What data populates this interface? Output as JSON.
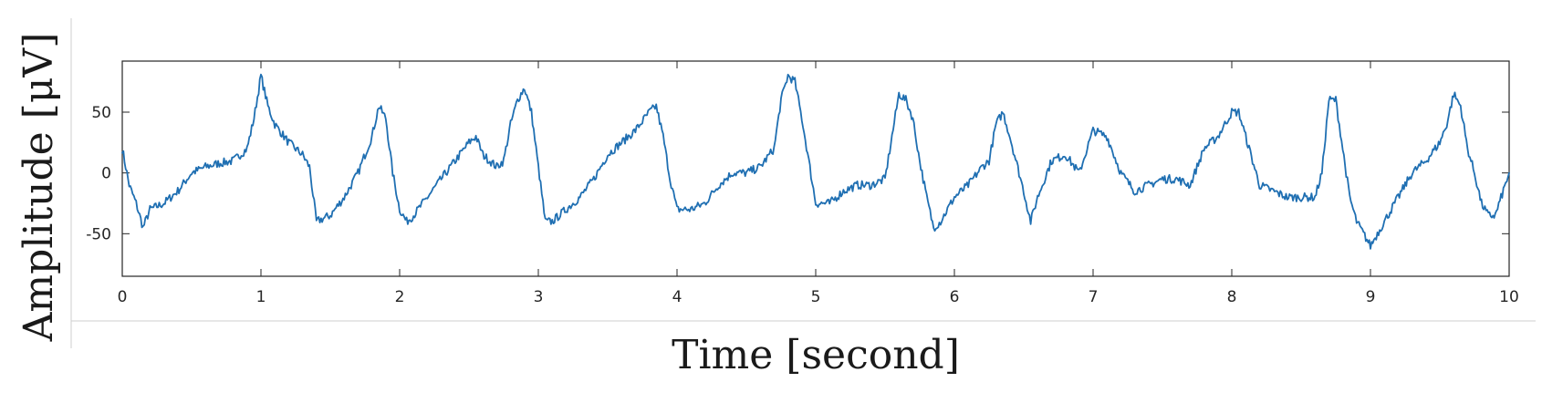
{
  "chart_data": {
    "type": "line",
    "title": "",
    "xlabel": "Time [second]",
    "ylabel": "Amplitude [μV]",
    "xlim": [
      0,
      10
    ],
    "ylim": [
      -85,
      92
    ],
    "xticks": [
      0,
      1,
      2,
      3,
      4,
      5,
      6,
      7,
      8,
      9,
      10
    ],
    "yticks": [
      -50,
      0,
      50
    ],
    "grid": false,
    "legend": "none",
    "line_color": "#1f6fb2",
    "series": [
      {
        "x": [
          0,
          0.05,
          0.1,
          0.15,
          0.2,
          0.3,
          0.4,
          0.5,
          0.6,
          0.7,
          0.8,
          0.9,
          0.95,
          1.0,
          1.05,
          1.1,
          1.2,
          1.3,
          1.35,
          1.4,
          1.5,
          1.6,
          1.7,
          1.75,
          1.8,
          1.85,
          1.9,
          1.95,
          2.0,
          2.05,
          2.1,
          2.2,
          2.3,
          2.4,
          2.5,
          2.55,
          2.6,
          2.7,
          2.75,
          2.8,
          2.85,
          2.9,
          2.95,
          3.0,
          3.05,
          3.1,
          3.2,
          3.3,
          3.4,
          3.5,
          3.6,
          3.7,
          3.8,
          3.85,
          3.9,
          3.95,
          4.0,
          4.1,
          4.2,
          4.3,
          4.4,
          4.5,
          4.6,
          4.7,
          4.75,
          4.8,
          4.85,
          4.9,
          4.95,
          5.0,
          5.1,
          5.2,
          5.3,
          5.4,
          5.5,
          5.55,
          5.6,
          5.65,
          5.7,
          5.75,
          5.8,
          5.85,
          5.9,
          6.0,
          6.1,
          6.2,
          6.25,
          6.3,
          6.35,
          6.4,
          6.5,
          6.55,
          6.6,
          6.7,
          6.8,
          6.9,
          7.0,
          7.1,
          7.2,
          7.3,
          7.4,
          7.5,
          7.6,
          7.7,
          7.8,
          7.9,
          8.0,
          8.05,
          8.1,
          8.2,
          8.3,
          8.4,
          8.5,
          8.6,
          8.65,
          8.7,
          8.75,
          8.8,
          8.85,
          8.9,
          8.95,
          9.0,
          9.1,
          9.2,
          9.3,
          9.4,
          9.5,
          9.55,
          9.6,
          9.65,
          9.7,
          9.75,
          9.8,
          9.85,
          9.9,
          10.0
        ],
        "y": [
          20,
          -10,
          -25,
          -45,
          -30,
          -25,
          -15,
          0,
          5,
          8,
          10,
          20,
          45,
          80,
          55,
          40,
          25,
          15,
          5,
          -40,
          -35,
          -20,
          0,
          15,
          30,
          55,
          45,
          0,
          -30,
          -40,
          -35,
          -20,
          -5,
          10,
          25,
          30,
          15,
          5,
          10,
          40,
          60,
          70,
          50,
          5,
          -40,
          -40,
          -30,
          -20,
          -5,
          15,
          25,
          35,
          50,
          55,
          30,
          -5,
          -30,
          -30,
          -25,
          -10,
          0,
          0,
          5,
          20,
          60,
          80,
          75,
          45,
          10,
          -25,
          -25,
          -15,
          -10,
          -10,
          -5,
          30,
          65,
          60,
          45,
          10,
          -20,
          -45,
          -40,
          -20,
          -10,
          5,
          10,
          40,
          50,
          30,
          -15,
          -40,
          -20,
          10,
          15,
          0,
          35,
          30,
          0,
          -15,
          -10,
          -5,
          -5,
          -10,
          20,
          30,
          50,
          50,
          30,
          -10,
          -15,
          -20,
          -20,
          -20,
          0,
          60,
          60,
          20,
          -20,
          -40,
          -50,
          -60,
          -40,
          -20,
          0,
          10,
          25,
          40,
          65,
          55,
          20,
          0,
          -25,
          -35,
          -35,
          0
        ]
      }
    ]
  }
}
